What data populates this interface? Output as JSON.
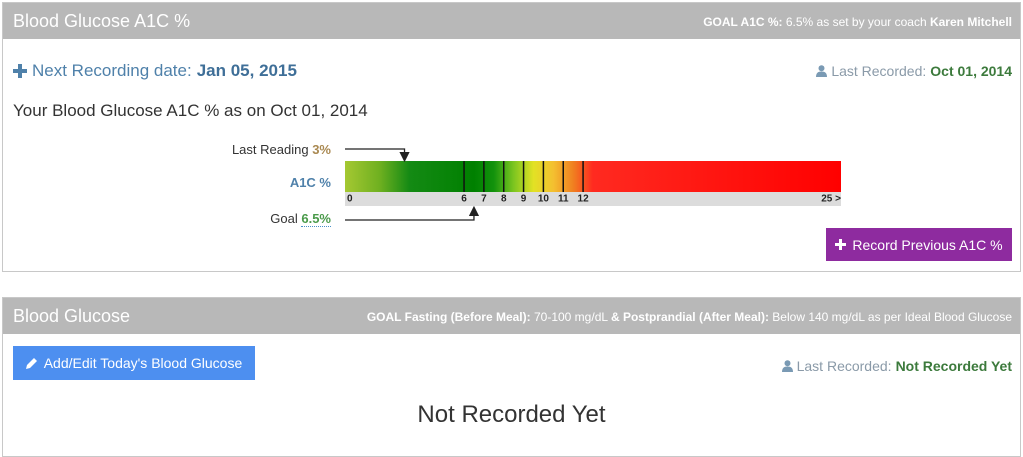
{
  "panels": [
    {
      "title": "Blood Glucose A1C %",
      "goal": {
        "label": "GOAL A1C %:",
        "text": "6.5% as set by your coach",
        "coach": "Karen Mitchell"
      },
      "next_recording": {
        "label": "Next Recording date:",
        "date": "Jan 05, 2015"
      },
      "last_recorded": {
        "label": "Last Recorded:",
        "value": "Oct 01, 2014"
      },
      "heading": "Your Blood Glucose A1C % as on Oct 01, 2014",
      "scale": {
        "axis_label": "A1C %",
        "xlim": [
          0,
          25
        ],
        "xticks": [
          0,
          6,
          7,
          8,
          9,
          10,
          11,
          12,
          {
            "value": 25,
            "label": "25 >"
          }
        ],
        "last_reading": {
          "label": "Last Reading",
          "value": 3,
          "value_label": "3%"
        },
        "goal": {
          "label": "Goal",
          "value": 6.5,
          "value_label": "6.5%"
        }
      },
      "button": "Record Previous A1C %"
    },
    {
      "title": "Blood Glucose",
      "goal": {
        "label": "GOAL Fasting (Before Meal):",
        "fasting": "70-100 mg/dL",
        "label2": "& Postprandial (After Meal):",
        "postprandial": "Below 140 mg/dL as per Ideal Blood Glucose"
      },
      "button": "Add/Edit Today's Blood Glucose",
      "last_recorded": {
        "label": "Last Recorded:",
        "value": "Not Recorded Yet"
      },
      "message": "Not Recorded Yet"
    }
  ]
}
